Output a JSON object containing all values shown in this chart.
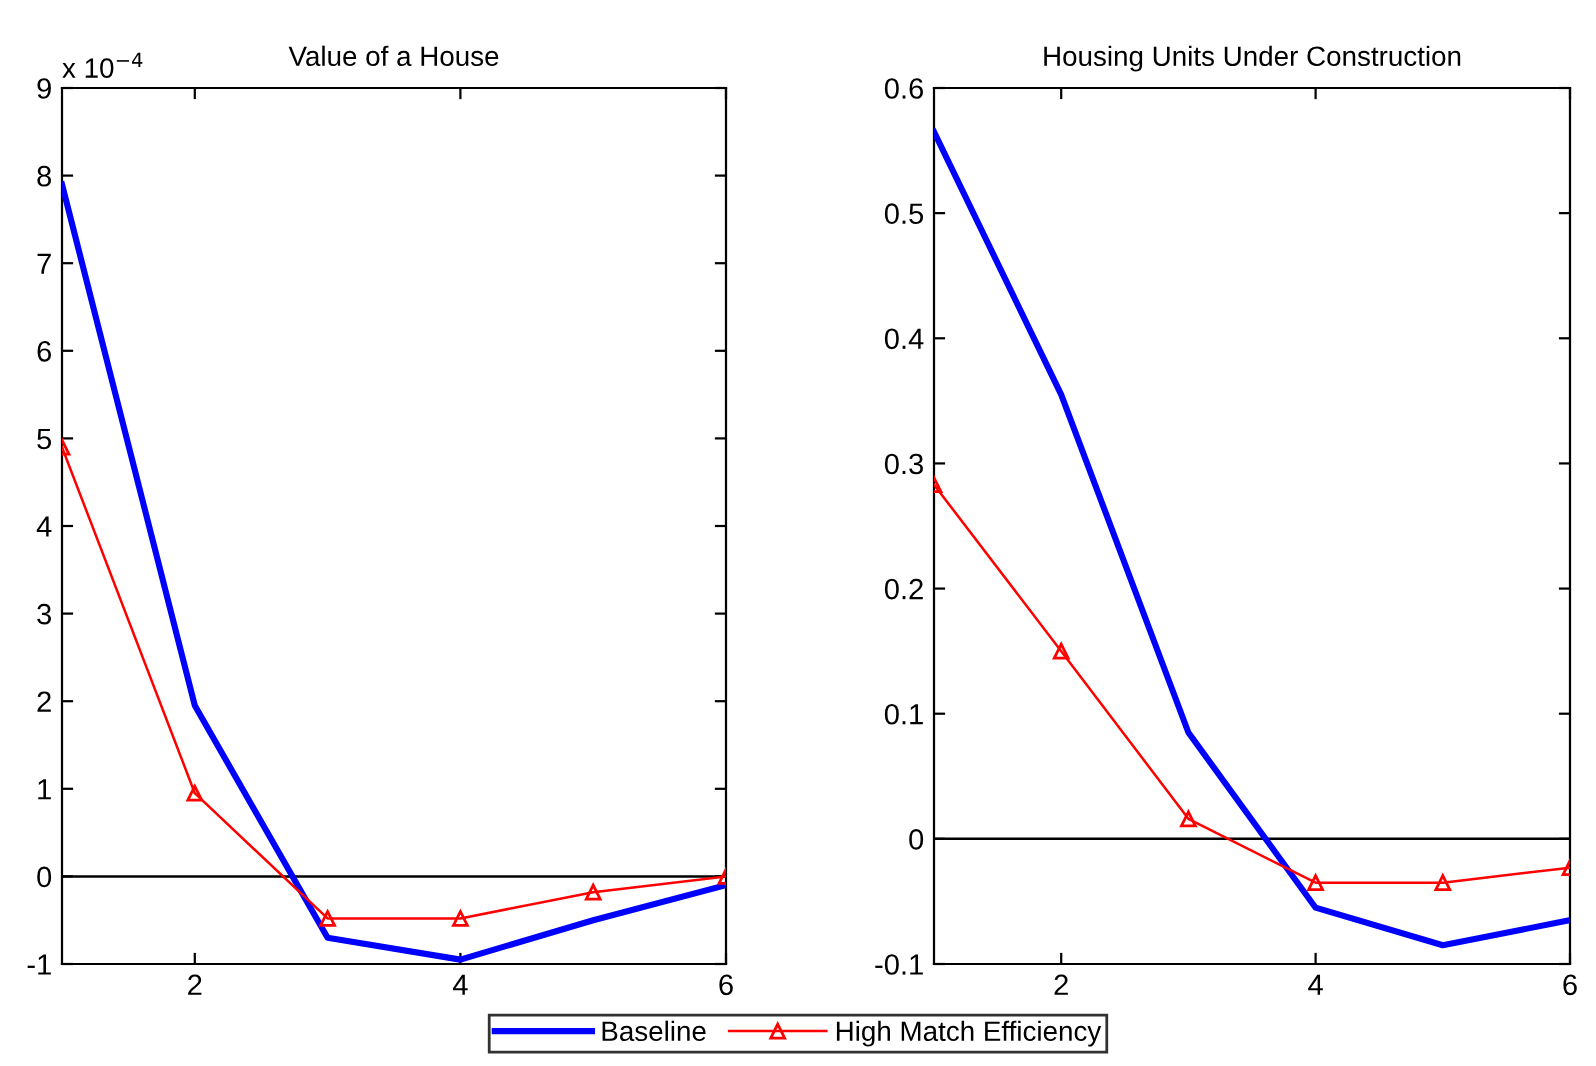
{
  "chart_data": [
    {
      "type": "line",
      "title": "Value of a House",
      "x": [
        1,
        2,
        3,
        4,
        5,
        6
      ],
      "xlim": [
        1,
        6
      ],
      "xticks": [
        2,
        4,
        6
      ],
      "ylim": [
        -1,
        9
      ],
      "yticks": [
        -1,
        0,
        1,
        2,
        3,
        4,
        5,
        6,
        7,
        8,
        9
      ],
      "annotations": [
        "x 10$^{−4}$"
      ],
      "ref_lines": [
        {
          "axis": "y",
          "value": 0,
          "color": "#000000"
        }
      ],
      "legend": "bottom",
      "grid": false,
      "series": [
        {
          "name": "Baseline",
          "color": "#0000ff",
          "marker": "none",
          "values": [
            7.9,
            1.95,
            -0.7,
            -0.95,
            -0.5,
            -0.1
          ]
        },
        {
          "name": "High Match Efficiency",
          "color": "#ff0000",
          "marker": "triangle",
          "values": [
            4.9,
            0.95,
            -0.48,
            -0.48,
            -0.18,
            0.0
          ]
        }
      ]
    },
    {
      "type": "line",
      "title": "Housing Units Under Construction",
      "x": [
        1,
        2,
        3,
        4,
        5,
        6
      ],
      "xlim": [
        1,
        6
      ],
      "xticks": [
        2,
        4,
        6
      ],
      "ylim": [
        -0.1,
        0.6
      ],
      "yticks": [
        -0.1,
        0,
        0.1,
        0.2,
        0.3,
        0.4,
        0.5,
        0.6
      ],
      "ref_lines": [
        {
          "axis": "y",
          "value": 0,
          "color": "#000000"
        }
      ],
      "grid": false,
      "series": [
        {
          "color": "#0000ff",
          "marker": "none",
          "values": [
            0.565,
            0.355,
            0.085,
            -0.055,
            -0.085,
            -0.065
          ]
        },
        {
          "color": "#ff0000",
          "marker": "triangle",
          "values": [
            0.283,
            0.15,
            0.016,
            -0.035,
            -0.035,
            -0.023
          ]
        }
      ]
    }
  ]
}
